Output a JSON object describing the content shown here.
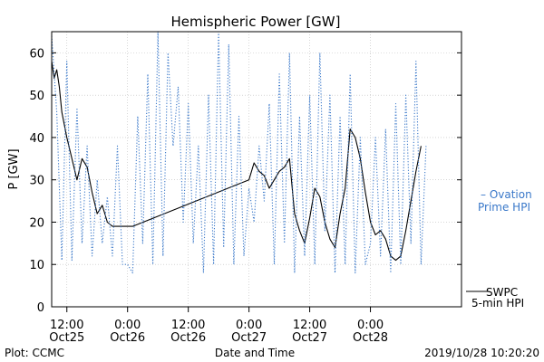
{
  "chart_data": {
    "type": "line",
    "title": "Hemispheric Power [GW]",
    "ylabel": "P [GW]",
    "xlabel": "Date and Time",
    "ylim": [
      0,
      65
    ],
    "yticks": [
      0,
      10,
      20,
      30,
      40,
      50,
      60
    ],
    "xlim": [
      "2019-10-25 09:00",
      "2019-10-28 18:00"
    ],
    "xticks": [
      {
        "x": "2019-10-25 12:00",
        "time": "12:00",
        "date": "Oct25"
      },
      {
        "x": "2019-10-26 00:00",
        "time": "0:00",
        "date": "Oct26"
      },
      {
        "x": "2019-10-26 12:00",
        "time": "12:00",
        "date": "Oct26"
      },
      {
        "x": "2019-10-27 00:00",
        "time": "0:00",
        "date": "Oct27"
      },
      {
        "x": "2019-10-27 12:00",
        "time": "12:00",
        "date": "Oct27"
      },
      {
        "x": "2019-10-28 00:00",
        "time": "0:00",
        "date": "Oct28"
      }
    ],
    "series": [
      {
        "name": "SWPC 5-min HPI",
        "style": "solid",
        "color": "#000000",
        "x": [
          "2019-10-25 09:00",
          "2019-10-25 09:30",
          "2019-10-25 10:00",
          "2019-10-25 10:30",
          "2019-10-25 11:00",
          "2019-10-25 12:00",
          "2019-10-25 13:00",
          "2019-10-25 14:00",
          "2019-10-25 15:00",
          "2019-10-25 16:00",
          "2019-10-25 17:00",
          "2019-10-25 18:00",
          "2019-10-25 19:00",
          "2019-10-25 20:00",
          "2019-10-25 21:00",
          "2019-10-25 22:00",
          "2019-10-25 23:00",
          "2019-10-26 00:00",
          "2019-10-26 01:00",
          "2019-10-27 00:00",
          "2019-10-27 01:00",
          "2019-10-27 02:00",
          "2019-10-27 03:00",
          "2019-10-27 04:00",
          "2019-10-27 05:00",
          "2019-10-27 06:00",
          "2019-10-27 07:00",
          "2019-10-27 08:00",
          "2019-10-27 09:00",
          "2019-10-27 10:00",
          "2019-10-27 11:00",
          "2019-10-27 12:00",
          "2019-10-27 13:00",
          "2019-10-27 14:00",
          "2019-10-27 15:00",
          "2019-10-27 16:00",
          "2019-10-27 17:00",
          "2019-10-27 18:00",
          "2019-10-27 19:00",
          "2019-10-27 20:00",
          "2019-10-27 21:00",
          "2019-10-27 22:00",
          "2019-10-27 23:00",
          "2019-10-28 00:00",
          "2019-10-28 01:00",
          "2019-10-28 02:00",
          "2019-10-28 03:00",
          "2019-10-28 04:00",
          "2019-10-28 05:00",
          "2019-10-28 06:00",
          "2019-10-28 07:00",
          "2019-10-28 08:00",
          "2019-10-28 09:00",
          "2019-10-28 10:00"
        ],
        "y": [
          58,
          54,
          56,
          52,
          46,
          40,
          35,
          30,
          35,
          33,
          27,
          22,
          24,
          20,
          19,
          19,
          19,
          19,
          19,
          30,
          34,
          32,
          31,
          28,
          30,
          32,
          33,
          35,
          22,
          18,
          15,
          21,
          28,
          26,
          20,
          16,
          14,
          22,
          28,
          42,
          40,
          35,
          27,
          20,
          17,
          18,
          16,
          12,
          11,
          12,
          18,
          25,
          32,
          38
        ]
      },
      {
        "name": "Ovation Prime HPI",
        "style": "dotted",
        "color": "#3a78c9",
        "x": [
          "2019-10-25 09:00",
          "2019-10-25 10:00",
          "2019-10-25 11:00",
          "2019-10-25 12:00",
          "2019-10-25 13:00",
          "2019-10-25 14:00",
          "2019-10-25 15:00",
          "2019-10-25 16:00",
          "2019-10-25 17:00",
          "2019-10-25 18:00",
          "2019-10-25 19:00",
          "2019-10-25 20:00",
          "2019-10-25 21:00",
          "2019-10-25 22:00",
          "2019-10-25 23:00",
          "2019-10-26 00:00",
          "2019-10-26 01:00",
          "2019-10-26 02:00",
          "2019-10-26 03:00",
          "2019-10-26 04:00",
          "2019-10-26 05:00",
          "2019-10-26 06:00",
          "2019-10-26 07:00",
          "2019-10-26 08:00",
          "2019-10-26 09:00",
          "2019-10-26 10:00",
          "2019-10-26 11:00",
          "2019-10-26 12:00",
          "2019-10-26 13:00",
          "2019-10-26 14:00",
          "2019-10-26 15:00",
          "2019-10-26 16:00",
          "2019-10-26 17:00",
          "2019-10-26 18:00",
          "2019-10-26 19:00",
          "2019-10-26 20:00",
          "2019-10-26 21:00",
          "2019-10-26 22:00",
          "2019-10-26 23:00",
          "2019-10-27 00:00",
          "2019-10-27 01:00",
          "2019-10-27 02:00",
          "2019-10-27 03:00",
          "2019-10-27 04:00",
          "2019-10-27 05:00",
          "2019-10-27 06:00",
          "2019-10-27 07:00",
          "2019-10-27 08:00",
          "2019-10-27 09:00",
          "2019-10-27 10:00",
          "2019-10-27 11:00",
          "2019-10-27 12:00",
          "2019-10-27 13:00",
          "2019-10-27 14:00",
          "2019-10-27 15:00",
          "2019-10-27 16:00",
          "2019-10-27 17:00",
          "2019-10-27 18:00",
          "2019-10-27 19:00",
          "2019-10-27 20:00",
          "2019-10-27 21:00",
          "2019-10-27 22:00",
          "2019-10-27 23:00",
          "2019-10-28 00:00",
          "2019-10-28 01:00",
          "2019-10-28 02:00",
          "2019-10-28 03:00",
          "2019-10-28 04:00",
          "2019-10-28 05:00",
          "2019-10-28 06:00",
          "2019-10-28 07:00",
          "2019-10-28 08:00",
          "2019-10-28 09:00",
          "2019-10-28 10:00",
          "2019-10-28 11:00"
        ],
        "y": [
          64,
          46,
          11,
          58,
          11,
          47,
          15,
          38,
          12,
          30,
          15,
          26,
          12,
          38,
          10,
          10,
          8,
          45,
          15,
          55,
          10,
          65,
          12,
          60,
          38,
          52,
          20,
          48,
          15,
          38,
          8,
          50,
          10,
          65,
          14,
          62,
          10,
          45,
          12,
          28,
          20,
          38,
          25,
          48,
          10,
          55,
          15,
          60,
          8,
          45,
          12,
          50,
          10,
          60,
          18,
          50,
          8,
          45,
          10,
          55,
          8,
          40,
          10,
          15,
          40,
          12,
          42,
          8,
          48,
          10,
          50,
          15,
          58,
          10,
          38
        ]
      }
    ]
  },
  "legend": {
    "ovation_line1": "– Ovation",
    "ovation_line2": "Prime HPI",
    "swpc_line1": "SWPC",
    "swpc_line2": "5-min HPI"
  },
  "footer": {
    "plot_credit": "Plot: CCMC",
    "timestamp": "2019/10/28 10:20:20"
  }
}
